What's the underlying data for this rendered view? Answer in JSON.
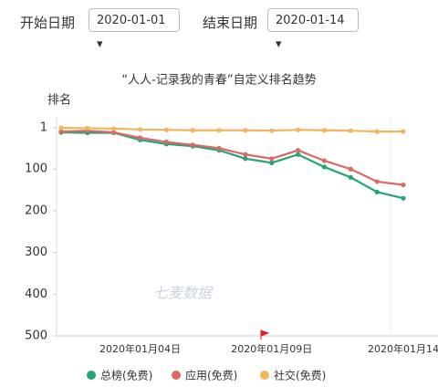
{
  "controls": {
    "start_label": "开始日期",
    "start_value": "2020-01-01 ▾",
    "end_label": "结束日期",
    "end_value": "2020-01-14 ▾"
  },
  "chart_data": {
    "type": "line",
    "title": "“人人-记录我的青春”自定义排名趋势",
    "y_label": "排名",
    "watermark": "七麦数据",
    "categories": [
      null,
      null,
      null,
      "2020年01月04日",
      null,
      null,
      null,
      null,
      "2020年01月09日",
      null,
      null,
      null,
      null,
      "2020年01月14"
    ],
    "series": [
      {
        "name": "总榜(免费)",
        "color": "#26a37b",
        "values": [
          12,
          13,
          13,
          30,
          40,
          45,
          55,
          75,
          85,
          65,
          95,
          120,
          155,
          170
        ]
      },
      {
        "name": "应用(免费)",
        "color": "#db6b62",
        "values": [
          10,
          8,
          12,
          25,
          35,
          42,
          50,
          65,
          75,
          55,
          80,
          100,
          130,
          138
        ]
      },
      {
        "name": "社交(免费)",
        "color": "#f2b55c",
        "values": [
          1,
          2,
          3,
          5,
          6,
          7,
          7,
          7,
          8,
          6,
          7,
          8,
          10,
          10
        ]
      }
    ],
    "ylim": [
      1,
      500
    ],
    "y_inverted": true,
    "yticks": [
      1,
      100,
      200,
      300,
      400,
      500
    ]
  }
}
